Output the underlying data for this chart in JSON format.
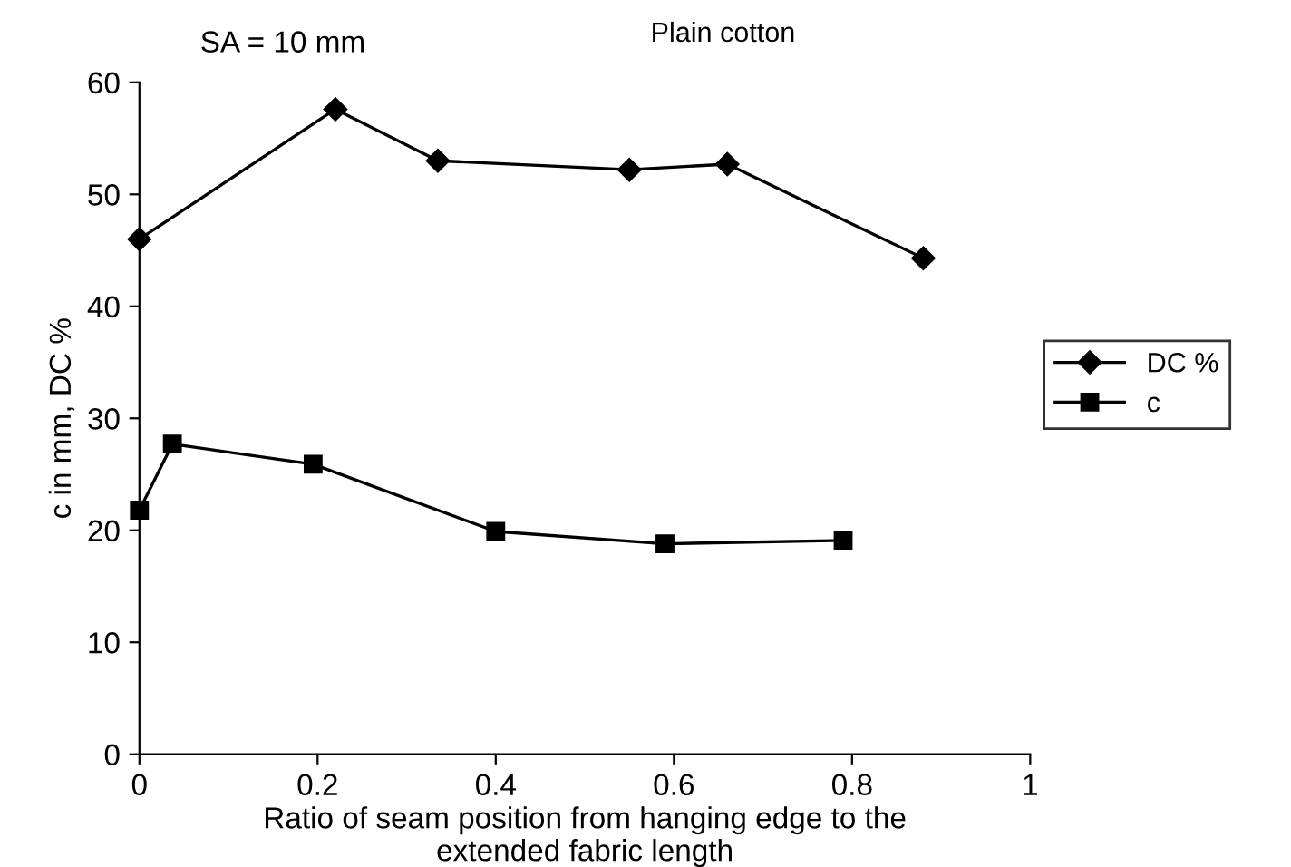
{
  "chart_data": {
    "type": "line",
    "title": "Plain cotton",
    "xlabel": "Ratio of seam position from hanging edge to the\nextended fabric length",
    "ylabel": "c in mm, DC %",
    "annotations": [
      "SA = 10 mm"
    ],
    "series": [
      {
        "name": "DC %",
        "color": "#000000",
        "marker": "diamond",
        "x": [
          0,
          0.22,
          0.335,
          0.55,
          0.66,
          0.88
        ],
        "values": [
          46,
          57.6,
          53,
          52.2,
          52.7,
          44.3
        ]
      },
      {
        "name": "c",
        "color": "#000000",
        "marker": "square",
        "x": [
          0,
          0.037,
          0.195,
          0.4,
          0.59,
          0.79
        ],
        "values": [
          21.8,
          27.7,
          25.9,
          19.9,
          18.8,
          19.1
        ]
      }
    ],
    "xlim": [
      0,
      1
    ],
    "xticks": [
      0,
      0.2,
      0.4,
      0.6,
      0.8,
      1
    ],
    "ylim": [
      0,
      60
    ],
    "yticks": [
      0,
      10,
      20,
      30,
      40,
      50,
      60
    ],
    "grid": false,
    "legend": "right",
    "line_style": "solid"
  }
}
